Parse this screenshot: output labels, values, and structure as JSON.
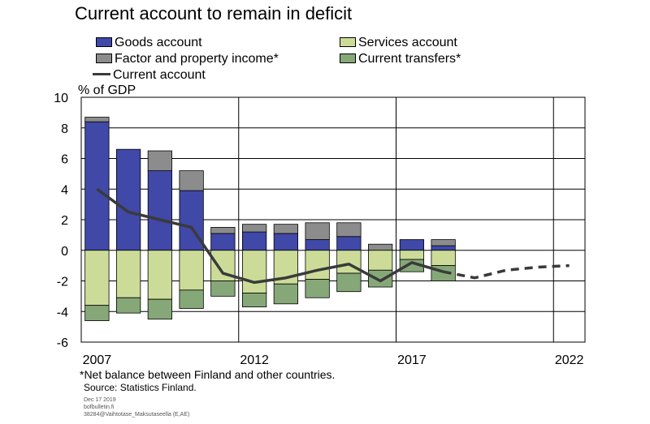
{
  "title": "Current account to remain in deficit",
  "unit_label": "% of GDP",
  "footnote": "*Net balance between Finland and other countries.",
  "source": "Source: Statistics Finland.",
  "meta": [
    "Dec 17 2019",
    "bofbulletin.fi",
    "38284@Vaihtotase_Maksutaseella (E,AE)"
  ],
  "legend": {
    "goods": "Goods account",
    "services": "Services account",
    "factor": "Factor and property income*",
    "transfers": "Current transfers*",
    "current": "Current account"
  },
  "colors": {
    "goods": "#4048a8",
    "services": "#ccdc98",
    "factor": "#8c8c8c",
    "transfers": "#86a878",
    "current": "#3a3a3a"
  },
  "chart_data": {
    "type": "bar",
    "stacked": true,
    "ylabel": "% of GDP",
    "ylim": [
      -6,
      10
    ],
    "yticks": [
      10,
      8,
      6,
      4,
      2,
      0,
      -2,
      -4,
      -6
    ],
    "xlim": [
      2006.5,
      2022.5
    ],
    "xticks": [
      2007,
      2012,
      2017,
      2022
    ],
    "grid": "horizontal lines and vertical lines at 2012, 2017, 2022",
    "legend_position": "top",
    "categories": [
      2007,
      2008,
      2009,
      2010,
      2011,
      2012,
      2013,
      2014,
      2015,
      2016,
      2017,
      2018
    ],
    "series": [
      {
        "name": "Goods account",
        "key": "goods",
        "values": [
          8.4,
          6.6,
          5.2,
          3.9,
          1.1,
          1.2,
          1.1,
          0.7,
          0.9,
          0.0,
          0.7,
          0.3
        ]
      },
      {
        "name": "Services account",
        "key": "services",
        "values": [
          -3.6,
          -3.1,
          -3.2,
          -2.6,
          -2.0,
          -2.8,
          -2.2,
          -1.9,
          -1.5,
          -1.3,
          -0.6,
          -1.0
        ]
      },
      {
        "name": "Factor and property income*",
        "key": "factor",
        "values": [
          0.3,
          0.0,
          1.3,
          1.3,
          0.4,
          0.5,
          0.6,
          1.1,
          0.9,
          0.4,
          0.0,
          0.4
        ]
      },
      {
        "name": "Current transfers*",
        "key": "transfers",
        "values": [
          -1.0,
          -1.0,
          -1.3,
          -1.2,
          -1.0,
          -0.9,
          -1.3,
          -1.2,
          -1.2,
          -1.1,
          -0.8,
          -1.0
        ]
      }
    ],
    "line_series": {
      "name": "Current account",
      "x": [
        2007,
        2008,
        2009,
        2010,
        2011,
        2012,
        2013,
        2014,
        2015,
        2016,
        2017,
        2018
      ],
      "y": [
        4.0,
        2.5,
        2.0,
        1.5,
        -1.5,
        -2.1,
        -1.8,
        -1.3,
        -0.9,
        -2.0,
        -0.8,
        -1.4
      ]
    },
    "forecast_series": {
      "name": "Current account (forecast)",
      "x": [
        2018,
        2019,
        2020,
        2021,
        2022
      ],
      "y": [
        -1.4,
        -1.8,
        -1.3,
        -1.1,
        -1.0
      ]
    }
  }
}
